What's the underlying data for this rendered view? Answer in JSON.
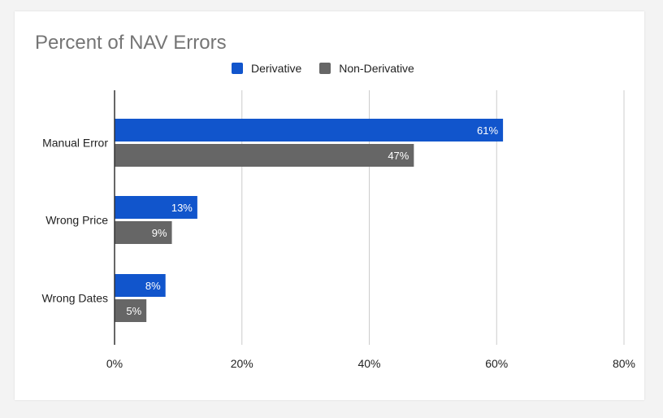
{
  "chart_data": {
    "type": "bar",
    "orientation": "horizontal",
    "title": "Percent of NAV Errors",
    "categories": [
      "Manual Error",
      "Wrong Price",
      "Wrong Dates"
    ],
    "series": [
      {
        "name": "Derivative",
        "values": [
          61,
          13,
          8
        ],
        "labels": [
          "61%",
          "13%",
          "8%"
        ],
        "color": "#1155cc"
      },
      {
        "name": "Non-Derivative",
        "values": [
          47,
          9,
          5
        ],
        "labels": [
          "47%",
          "9%",
          "5%"
        ],
        "color": "#666666"
      }
    ],
    "xlim": [
      0,
      80
    ],
    "xticks": [
      0,
      20,
      40,
      60,
      80
    ],
    "xtick_labels": [
      "0%",
      "20%",
      "40%",
      "60%",
      "80%"
    ],
    "grid": true,
    "legend_position": "top"
  }
}
